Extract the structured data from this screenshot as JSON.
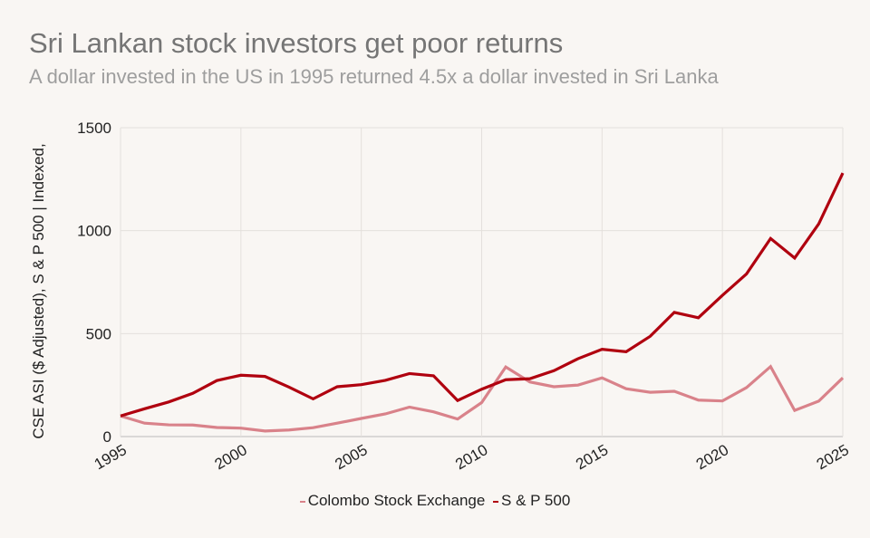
{
  "title": "Sri Lankan stock investors get poor returns",
  "subtitle": "A dollar invested in the US in 1995 returned 4.5x a dollar invested in Sri Lanka",
  "chart_data": {
    "type": "line",
    "title": "Sri Lankan stock investors get poor returns",
    "subtitle": "A dollar invested in the US in 1995 returned 4.5x a dollar invested in Sri Lanka",
    "xlabel": "",
    "ylabel": "CSE ASI ($ Adjusted), S & P 500 | Indexed,",
    "x": [
      1995,
      1996,
      1997,
      1998,
      1999,
      2000,
      2001,
      2002,
      2003,
      2004,
      2005,
      2006,
      2007,
      2008,
      2009,
      2010,
      2011,
      2012,
      2013,
      2014,
      2015,
      2016,
      2017,
      2018,
      2019,
      2020,
      2021,
      2022,
      2023,
      2024,
      2025
    ],
    "xticks": [
      "1995",
      "2000",
      "2005",
      "2010",
      "2015",
      "2020",
      "2025"
    ],
    "yticks": [
      "0",
      "500",
      "1000",
      "1500"
    ],
    "xlim": [
      1995,
      2025
    ],
    "ylim": [
      0,
      1500
    ],
    "grid": true,
    "legend_position": "bottom",
    "series": [
      {
        "name": "Colombo Stock Exchange",
        "color": "#d9828a",
        "values": [
          100,
          65,
          57,
          56,
          44,
          41,
          27,
          32,
          43,
          65,
          88,
          110,
          143,
          120,
          85,
          165,
          338,
          265,
          242,
          250,
          285,
          232,
          215,
          220,
          177,
          173,
          238,
          340,
          127,
          172,
          285
        ]
      },
      {
        "name": "S & P 500",
        "color": "#b0000f",
        "values": [
          100,
          135,
          168,
          210,
          272,
          298,
          292,
          240,
          183,
          242,
          252,
          273,
          306,
          295,
          175,
          230,
          276,
          281,
          320,
          378,
          424,
          412,
          487,
          603,
          577,
          686,
          790,
          962,
          867,
          1033,
          1280
        ]
      }
    ]
  }
}
